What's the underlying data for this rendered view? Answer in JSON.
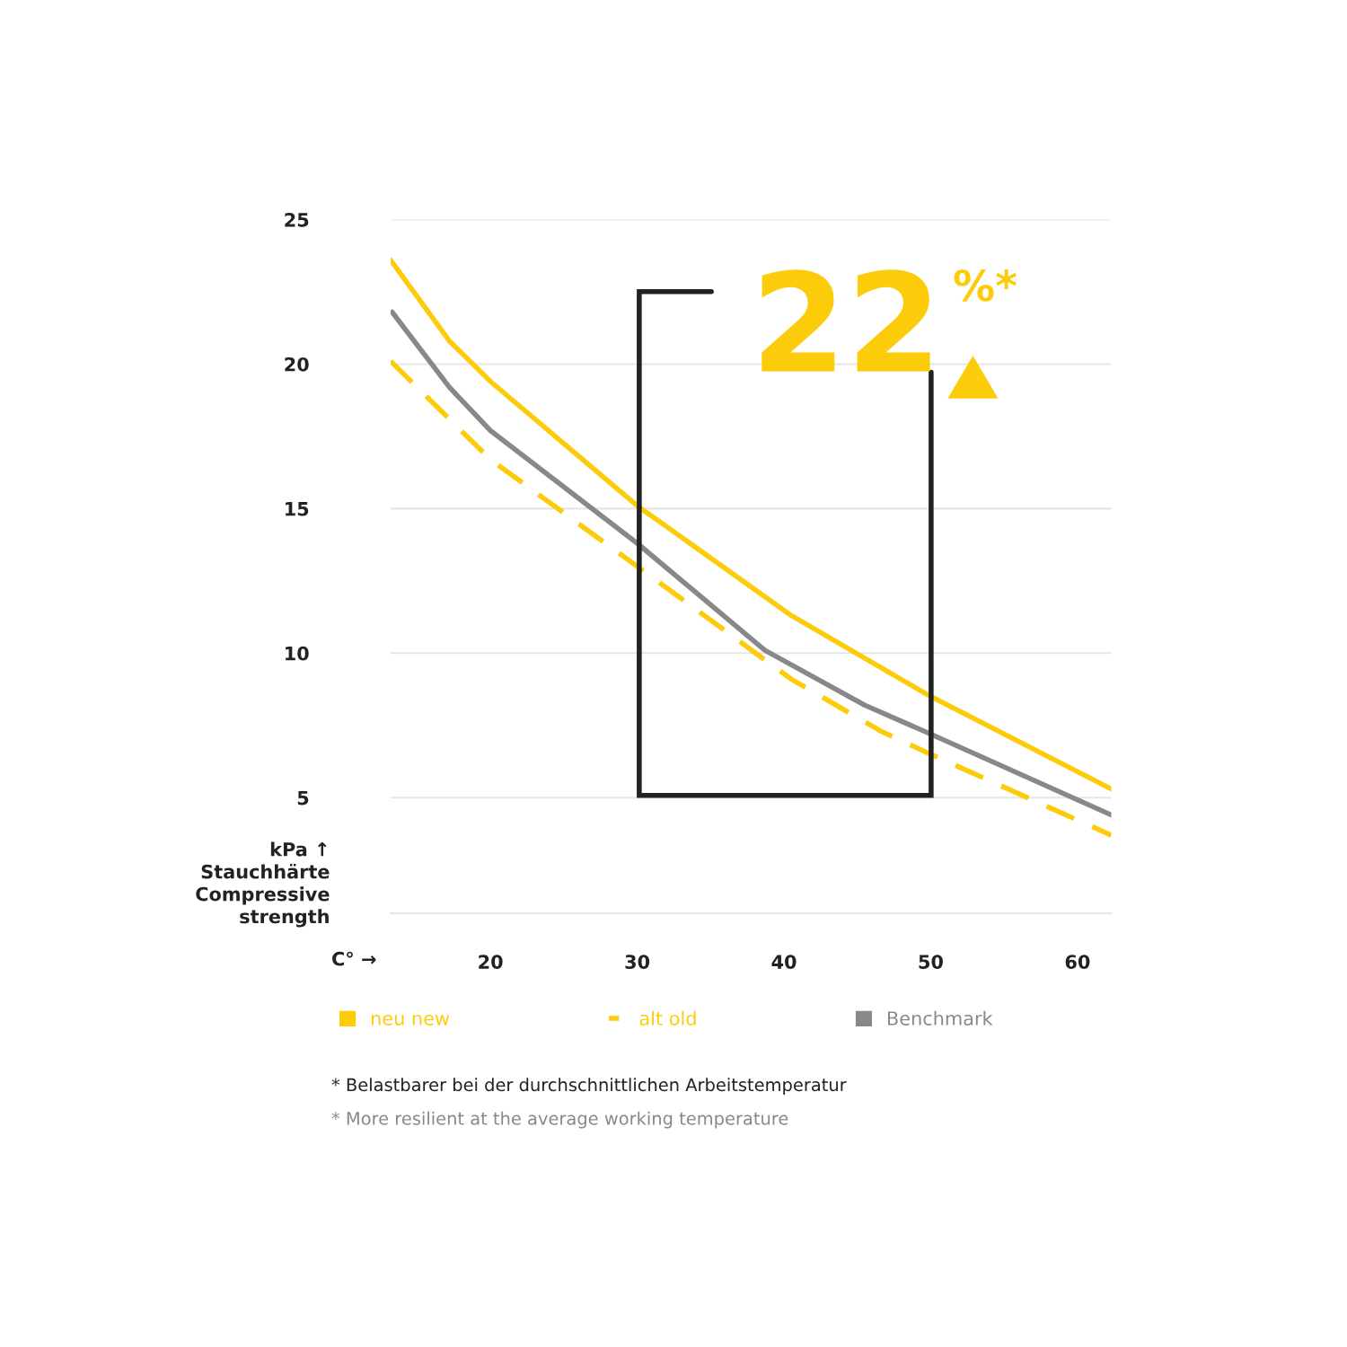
{
  "chart_data": {
    "type": "line",
    "xlabel": "C° →",
    "ylabel": "kPa ↑\nStauchhärte\nCompressive\nstrength",
    "xlim": [
      13.2,
      62.3
    ],
    "ylim": [
      1,
      25
    ],
    "xticks": [
      20,
      30,
      40,
      50,
      60
    ],
    "yticks": [
      5,
      10,
      15,
      20,
      25
    ],
    "grid": "y",
    "legend": "bottom",
    "series": [
      {
        "name": "neu new",
        "color": "#fccc0a",
        "line_style": "solid",
        "x": [
          13.2,
          17.2,
          20,
          30,
          40.5,
          46.6,
          50,
          62.3
        ],
        "values": [
          23.6,
          20.8,
          19.4,
          15.1,
          11.3,
          9.5,
          8.5,
          5.3
        ]
      },
      {
        "name": "alt old",
        "color": "#fccc0a",
        "line_style": "dashed",
        "x": [
          13.2,
          20,
          30,
          40.5,
          46.6,
          50,
          62.3
        ],
        "values": [
          20.1,
          16.7,
          13.0,
          9.1,
          7.3,
          6.5,
          3.7
        ]
      },
      {
        "name": "Benchmark",
        "color": "#888888",
        "line_style": "solid",
        "x": [
          13.3,
          17.2,
          20,
          30,
          38.7,
          45.5,
          50,
          62.3
        ],
        "values": [
          21.8,
          19.2,
          17.7,
          13.8,
          10.1,
          8.2,
          7.2,
          4.4
        ]
      }
    ],
    "annotations": [
      "22",
      "%*",
      "* Belastbarer bei der durchschnittlichen Arbeitstemperatur",
      "* More resilient at the average working temperature"
    ]
  }
}
